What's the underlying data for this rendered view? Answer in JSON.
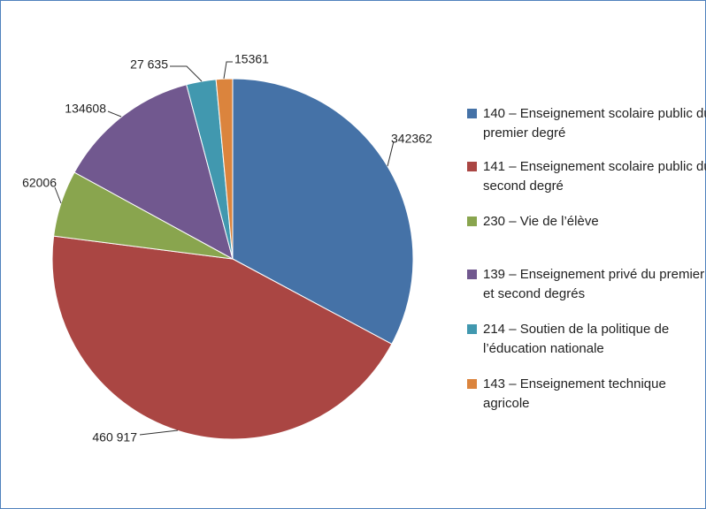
{
  "chart_data": {
    "type": "pie",
    "categories": [
      "140 – Enseignement scolaire public du premier degré",
      "141 – Enseignement scolaire public du second degré",
      "230 – Vie de l’élève",
      "139 – Enseignement privé du premier et second degrés",
      "214 – Soutien de la politique de l’éducation nationale",
      "143 – Enseignement technique agricole"
    ],
    "values": [
      342362,
      460917,
      62006,
      134608,
      27635,
      15361
    ],
    "value_labels": [
      "342362",
      "460 917",
      "62006",
      "134608",
      "27 635",
      "15361"
    ],
    "colors": [
      "#4572a7",
      "#aa4643",
      "#89a54e",
      "#71588f",
      "#4198af",
      "#db843d"
    ]
  }
}
